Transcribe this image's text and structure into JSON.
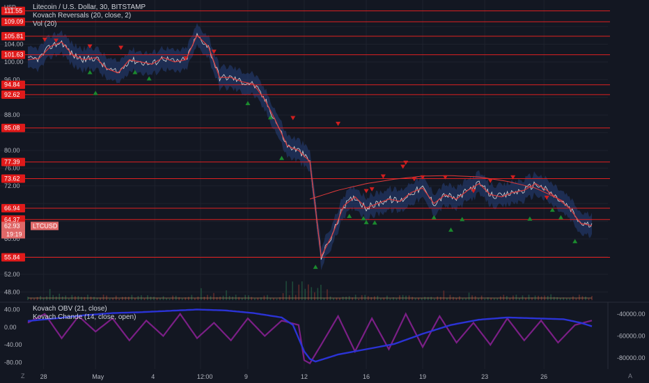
{
  "header": {
    "currency": "USD",
    "symbol_title": "Litecoin / U.S. Dollar, 30, BITSTAMP",
    "indicator1": "Kovach Reversals (20, close, 2)",
    "indicator2": "Vol (20)"
  },
  "sub_legend": {
    "indicator1": "Kovach OBV (21, close)",
    "indicator2": "Kovach Chande (14, close, open)"
  },
  "corner": {
    "left": "Z",
    "right": "A"
  },
  "colors": {
    "background": "#131722",
    "level_line": "#e02020",
    "price": "#d8d8d8",
    "ma_line": "#e23a3a",
    "band": "#2a4a8e",
    "up_marker": "#1b8a2e",
    "down_marker": "#d11f1f",
    "obv": "#2b33d6",
    "chande": "#7b1f86",
    "volume_line": "#f0b070"
  },
  "chart_data": [
    {
      "type": "line",
      "title": "Litecoin / U.S. Dollar, 30, BITSTAMP",
      "ylabel": "USD",
      "ylim": [
        46,
        114
      ],
      "x_tick_labels": [
        "28",
        "May",
        "4",
        "12:00",
        "9",
        "12",
        "16",
        "19",
        "23",
        "26"
      ],
      "x_tick_pos": [
        0.028,
        0.12,
        0.225,
        0.306,
        0.39,
        0.49,
        0.6,
        0.7,
        0.81,
        0.915
      ],
      "y_ticks": [
        48,
        52,
        56,
        60,
        64,
        68,
        72,
        76,
        80,
        84,
        88,
        92,
        96,
        100,
        104,
        108
      ],
      "y_tick_labels": [
        "48.00",
        "52.00",
        "56.00",
        "60.00",
        "64.00",
        "68.00",
        "72.00",
        "76.00",
        "80.00",
        "84.00",
        "88.00",
        "92.00",
        "96.00",
        "100.00",
        "104.00",
        "108.00"
      ],
      "levels": [
        111.55,
        109.09,
        105.81,
        101.63,
        94.84,
        92.62,
        85.08,
        77.39,
        73.62,
        66.94,
        64.37,
        55.84
      ],
      "level_labels": [
        "111.55",
        "109.09",
        "105.81",
        "101.63",
        "94.84",
        "92.62",
        "85.08",
        "77.39",
        "73.62",
        "66.94",
        "64.37",
        "55.84"
      ],
      "last_price_label": "62.93",
      "countdown_label": "19:19",
      "series_label": "LTCUSD",
      "price_series": {
        "x": [
          0,
          0.02,
          0.04,
          0.06,
          0.08,
          0.1,
          0.12,
          0.14,
          0.16,
          0.18,
          0.2,
          0.22,
          0.24,
          0.26,
          0.28,
          0.3,
          0.32,
          0.34,
          0.36,
          0.38,
          0.4,
          0.42,
          0.44,
          0.46,
          0.48,
          0.5,
          0.52,
          0.54,
          0.56,
          0.58,
          0.6,
          0.62,
          0.64,
          0.66,
          0.68,
          0.7,
          0.72,
          0.74,
          0.76,
          0.78,
          0.8,
          0.82,
          0.84,
          0.86,
          0.88,
          0.9,
          0.92,
          0.94,
          0.96,
          0.98,
          1.0
        ],
        "y": [
          100.5,
          100.8,
          103.5,
          104.5,
          101.5,
          100.5,
          101,
          98.5,
          97.5,
          100.5,
          100,
          99.5,
          101,
          100,
          100.5,
          106,
          103.5,
          96.5,
          96.5,
          95.5,
          95,
          91.5,
          86.5,
          81,
          80,
          77.5,
          56,
          61,
          67.5,
          69.5,
          67,
          68,
          69,
          68.5,
          70.5,
          71.5,
          68,
          70,
          69,
          71,
          72.5,
          70,
          69.5,
          70.5,
          71,
          72.5,
          71,
          69,
          67,
          63.5,
          63
        ]
      },
      "trend_arc": {
        "x": [
          0.5,
          0.55,
          0.6,
          0.65,
          0.7,
          0.75,
          0.8,
          0.85,
          0.9,
          0.95
        ],
        "y": [
          69,
          71,
          72.5,
          73.5,
          74.2,
          74.3,
          74,
          73,
          71.5,
          68.5
        ]
      },
      "down_markers": {
        "x": [
          0.03,
          0.05,
          0.11,
          0.165,
          0.28,
          0.33,
          0.47,
          0.55,
          0.6,
          0.61,
          0.63,
          0.665,
          0.67,
          0.685,
          0.7,
          0.74,
          0.79,
          0.82,
          0.86,
          0.92
        ],
        "y": [
          105,
          104.8,
          103.5,
          103.2,
          100.8,
          102.3,
          87.3,
          86,
          70.8,
          71.2,
          74.1,
          76.3,
          77.2,
          73.5,
          73.9,
          73.9,
          70.8,
          73.1,
          73.9,
          69.3
        ]
      },
      "up_markers": {
        "x": [
          0.11,
          0.12,
          0.19,
          0.215,
          0.39,
          0.43,
          0.45,
          0.51,
          0.57,
          0.595,
          0.6,
          0.615,
          0.72,
          0.75,
          0.77,
          0.89,
          0.93,
          0.945,
          0.97
        ],
        "y": [
          97.7,
          93,
          97.7,
          96.3,
          90.7,
          87.5,
          78.3,
          53.7,
          65.2,
          64.7,
          63.8,
          63.7,
          64.9,
          62.1,
          64.5,
          64.6,
          66.6,
          64.9,
          59.5
        ]
      }
    },
    {
      "type": "line",
      "ylim": [
        -95,
        55
      ],
      "y_ticks": [
        40,
        0,
        -40,
        -80
      ],
      "y_tick_labels": [
        "40.00",
        "0.00",
        "-40.00",
        "-80.00"
      ],
      "right_axis_ticks": [
        -40000,
        -60000,
        -80000
      ],
      "right_axis_labels": [
        "-40000.00",
        "-60000.00",
        "-80000.00"
      ],
      "series": [
        {
          "name": "Kovach OBV (21, close)",
          "x": [
            0,
            0.05,
            0.1,
            0.15,
            0.2,
            0.25,
            0.3,
            0.35,
            0.4,
            0.45,
            0.47,
            0.49,
            0.5,
            0.51,
            0.55,
            0.6,
            0.65,
            0.7,
            0.75,
            0.8,
            0.85,
            0.9,
            0.95,
            0.98,
            1.0
          ],
          "y": [
            14,
            20,
            27,
            32,
            34,
            37,
            40,
            38,
            32,
            22,
            5,
            -55,
            -72,
            -78,
            -62,
            -50,
            -38,
            -15,
            5,
            17,
            22,
            20,
            18,
            10,
            2
          ]
        },
        {
          "name": "Kovach Chande (14, close, open)",
          "x": [
            0,
            0.03,
            0.06,
            0.09,
            0.12,
            0.15,
            0.18,
            0.21,
            0.24,
            0.27,
            0.3,
            0.33,
            0.36,
            0.39,
            0.42,
            0.45,
            0.48,
            0.49,
            0.5,
            0.52,
            0.55,
            0.58,
            0.61,
            0.64,
            0.67,
            0.7,
            0.73,
            0.76,
            0.79,
            0.82,
            0.85,
            0.88,
            0.91,
            0.94,
            0.97,
            1.0
          ],
          "y": [
            10,
            30,
            -25,
            25,
            -10,
            20,
            -30,
            15,
            -20,
            30,
            -25,
            10,
            -30,
            20,
            -20,
            15,
            5,
            -75,
            -82,
            -40,
            25,
            -55,
            20,
            -50,
            30,
            -45,
            25,
            -35,
            10,
            -40,
            20,
            -30,
            15,
            -35,
            5,
            15
          ]
        }
      ]
    }
  ]
}
